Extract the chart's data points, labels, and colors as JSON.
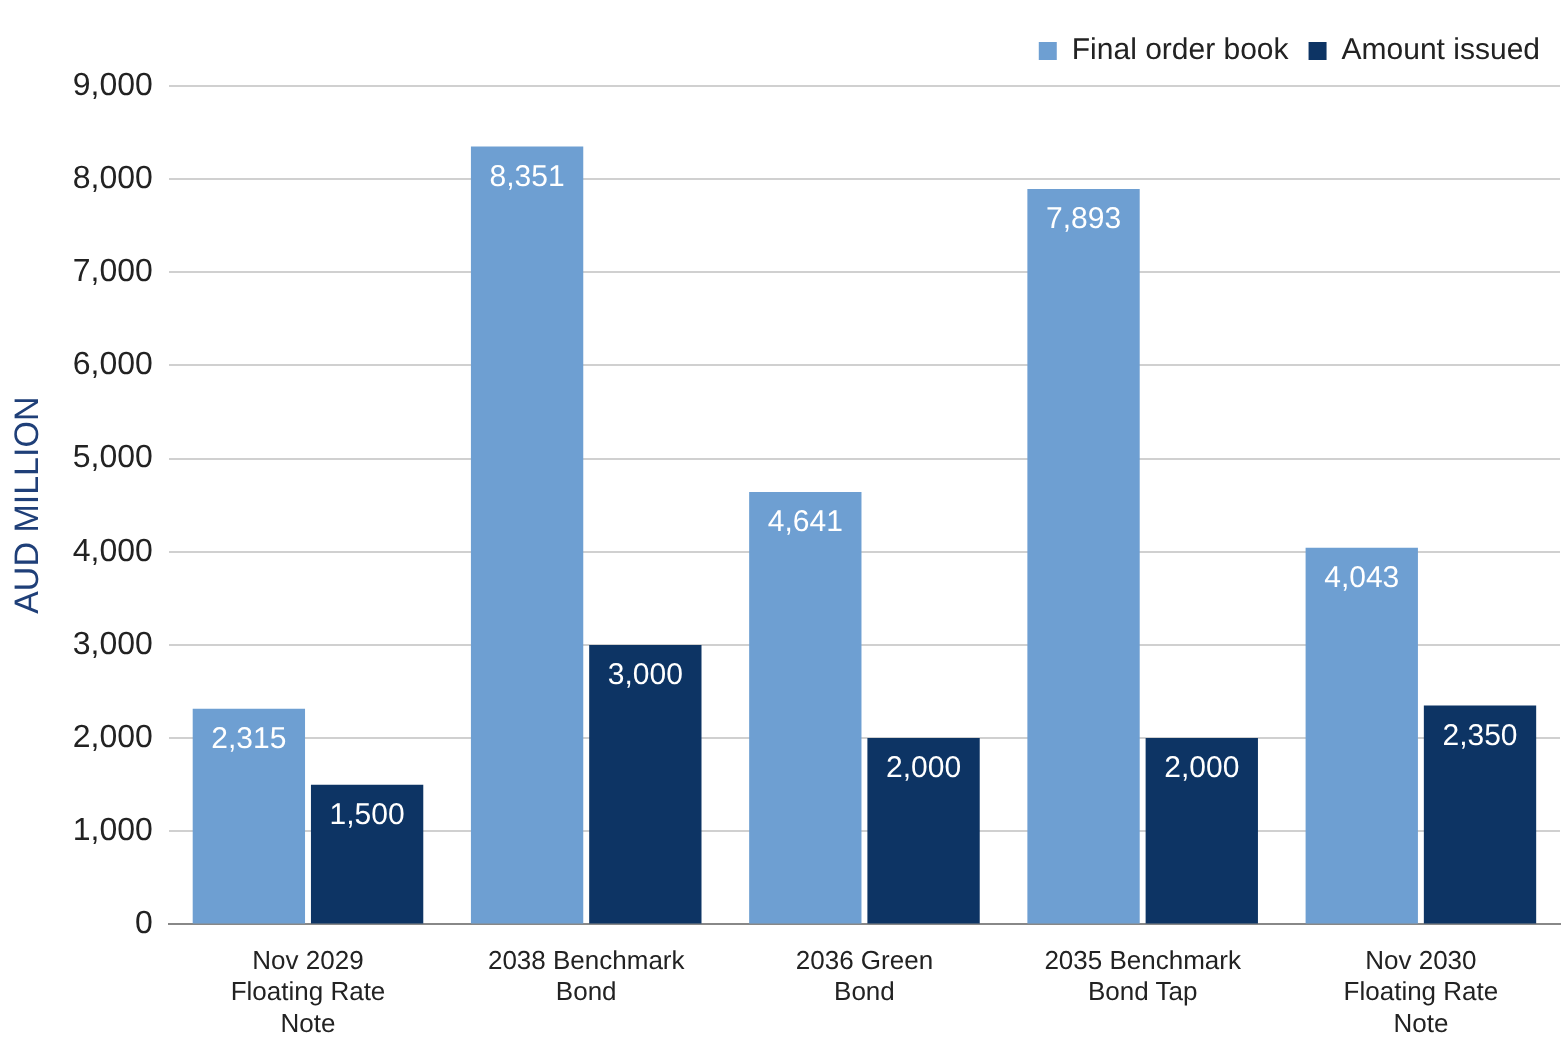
{
  "chart_data": {
    "type": "bar",
    "ylabel": "AUD MILLION",
    "categories": [
      "Nov 2029 Floating Rate Note",
      "2038 Benchmark Bond",
      "2036 Green Bond",
      "2035 Benchmark Bond Tap",
      "Nov 2030 Floating Rate Note"
    ],
    "series": [
      {
        "name": "Final order book",
        "color": "#6e9fd2",
        "values": [
          2315,
          8351,
          4641,
          7893,
          4043
        ],
        "value_labels": [
          "2,315",
          "8,351",
          "4,641",
          "7,893",
          "4,043"
        ]
      },
      {
        "name": "Amount issued",
        "color": "#0d3464",
        "values": [
          1500,
          3000,
          2000,
          2000,
          2350
        ],
        "value_labels": [
          "1,500",
          "3,000",
          "2,000",
          "2,000",
          "2,350"
        ]
      }
    ],
    "ylim": [
      0,
      9000
    ],
    "yticks": [
      0,
      {
        "value": 1000,
        "label": "1,000"
      },
      {
        "value": 2000,
        "label": "2,000"
      },
      {
        "value": 3000,
        "label": "3,000"
      },
      {
        "value": 4000,
        "label": "4,000"
      },
      {
        "value": 5000,
        "label": "5,000"
      },
      {
        "value": 6000,
        "label": "6,000"
      },
      {
        "value": 7000,
        "label": "7,000"
      },
      {
        "value": 8000,
        "label": "8,000"
      },
      {
        "value": 9000,
        "label": "9,000"
      }
    ],
    "grid": "y",
    "legend": "top right"
  }
}
